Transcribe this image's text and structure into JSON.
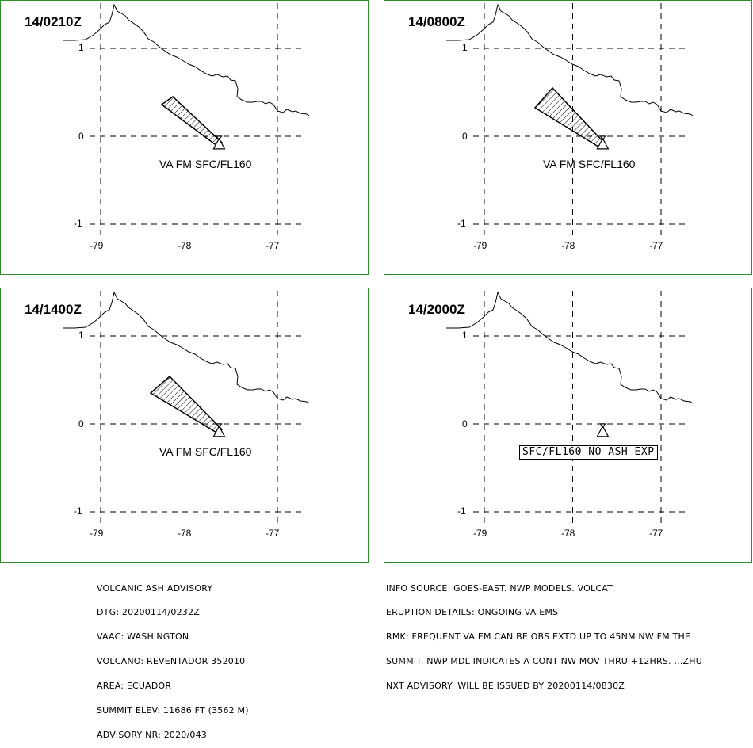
{
  "panels": [
    {
      "time": "14/0210Z",
      "ash_label": "VA FM SFC/FL160",
      "has_plume": true,
      "plume_variant": 1
    },
    {
      "time": "14/0800Z",
      "ash_label": "VA FM SFC/FL160",
      "has_plume": true,
      "plume_variant": 2
    },
    {
      "time": "14/1400Z",
      "ash_label": "VA FM SFC/FL160",
      "has_plume": true,
      "plume_variant": 3
    },
    {
      "time": "14/2000Z",
      "ash_label": "",
      "has_plume": false,
      "no_ash_text": "SFC/FL160 NO ASH EXP"
    }
  ],
  "grid": {
    "lat_labels": [
      "1",
      "0",
      "-1"
    ],
    "lon_labels": [
      "-79",
      "-78",
      "-77"
    ]
  },
  "volcano": {
    "name": "REVENTADOR",
    "lon": -77.66,
    "lat": -0.08
  },
  "advisory_left": {
    "lines": [
      "VOLCANIC ASH ADVISORY",
      "DTG: 20200114/0232Z",
      "VAAC: WASHINGTON",
      "VOLCANO: REVENTADOR 352010",
      "AREA: ECUADOR",
      "SUMMIT ELEV: 11686 FT (3562 M)",
      "ADVISORY NR: 2020/043"
    ]
  },
  "advisory_right": {
    "lines": [
      "INFO SOURCE: GOES-EAST. NWP MODELS. VOLCAT.",
      "ERUPTION DETAILS: ONGOING VA EMS",
      "RMK: FREQUENT VA EM CAN BE OBS EXTD UP TO 45NM NW FM THE",
      "SUMMIT. NWP MDL INDICATES A CONT NW MOV THRU +12HRS. ...ZHU",
      "NXT ADVISORY: WILL BE ISSUED BY 20200114/0830Z"
    ]
  },
  "colors": {
    "panel_border": "#2e8b2e",
    "lines": "#000000"
  }
}
